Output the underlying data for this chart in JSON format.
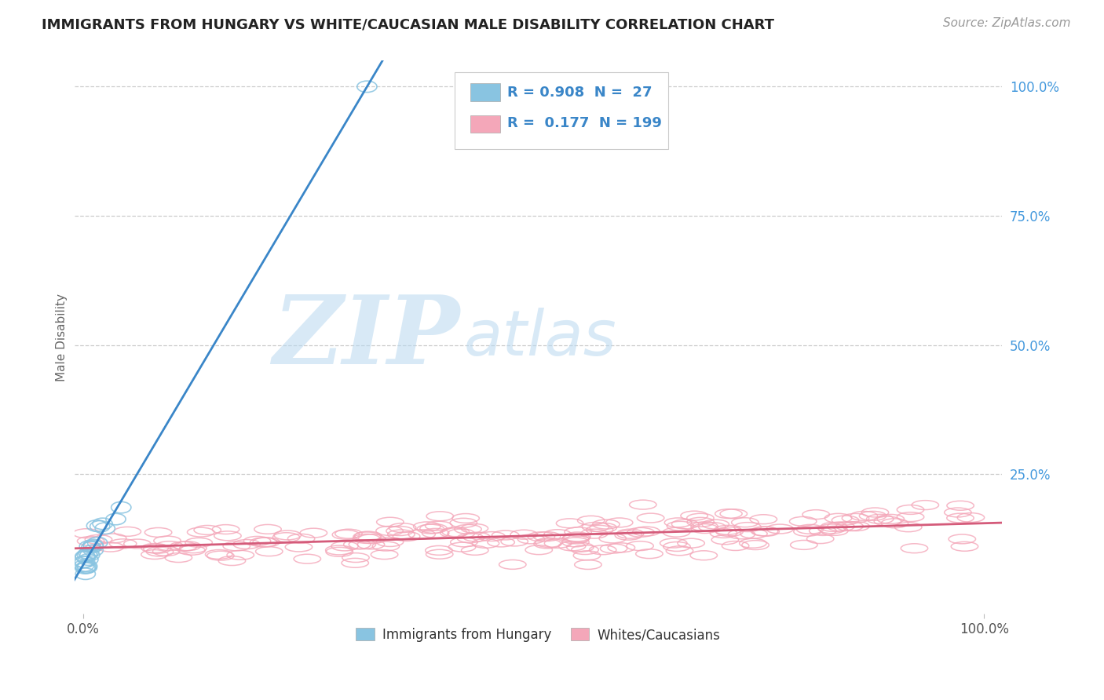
{
  "title": "IMMIGRANTS FROM HUNGARY VS WHITE/CAUCASIAN MALE DISABILITY CORRELATION CHART",
  "source_text": "Source: ZipAtlas.com",
  "ylabel": "Male Disability",
  "watermark_zip": "ZIP",
  "watermark_atlas": "atlas",
  "blue_R": 0.908,
  "blue_N": 27,
  "pink_R": 0.177,
  "pink_N": 199,
  "blue_color": "#89c4e1",
  "pink_color": "#f4a7b9",
  "blue_line_color": "#3a86c8",
  "pink_line_color": "#d45b7a",
  "title_color": "#222222",
  "legend_R_color": "#3a86c8",
  "ytick_color": "#4499dd",
  "ylim": [
    -0.02,
    1.05
  ],
  "xlim": [
    -0.01,
    1.02
  ],
  "grid_color": "#cccccc",
  "background_color": "#ffffff",
  "blue_scatter_seed": 42,
  "pink_scatter_seed": 123
}
